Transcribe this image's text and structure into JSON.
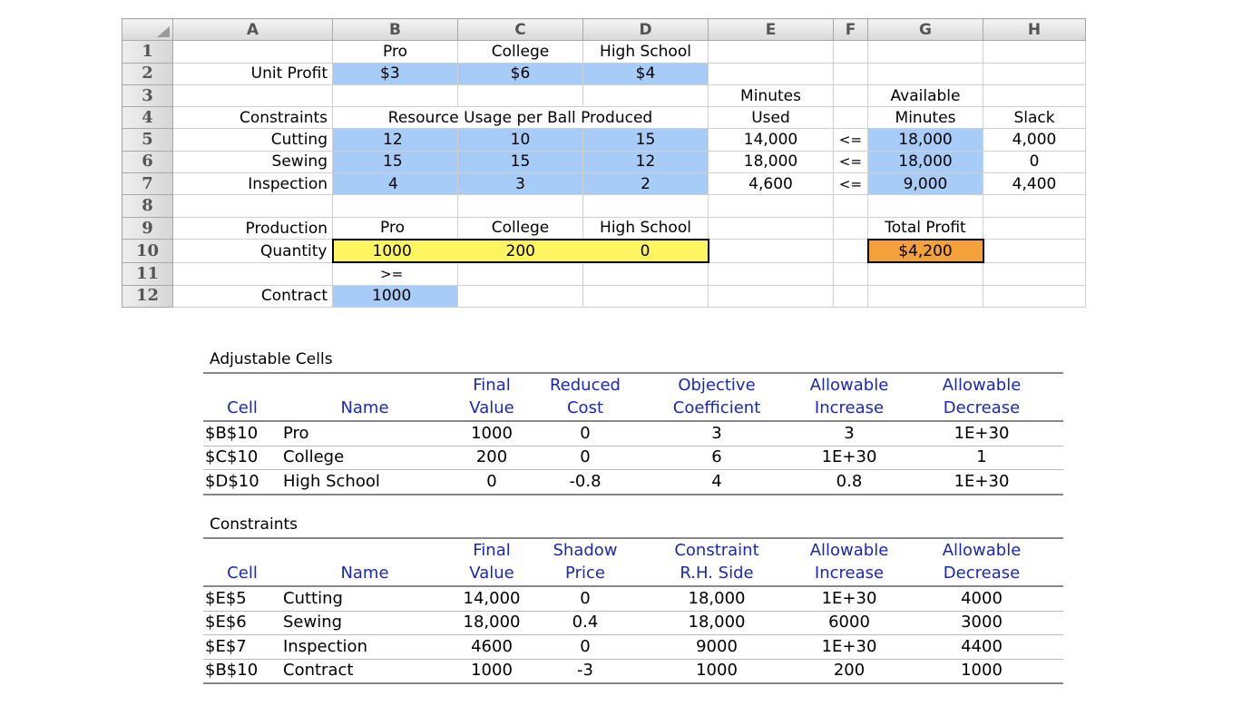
{
  "spreadsheet": {
    "column_headers": [
      "A",
      "B",
      "C",
      "D",
      "E",
      "F",
      "G",
      "H"
    ],
    "row_numbers": [
      "1",
      "2",
      "3",
      "4",
      "5",
      "6",
      "7",
      "8",
      "9",
      "10",
      "11",
      "12"
    ],
    "r1": {
      "B": "Pro",
      "C": "College",
      "D": "High School"
    },
    "r2": {
      "A": "Unit Profit",
      "B": "$3",
      "C": "$6",
      "D": "$4"
    },
    "r3": {
      "E": "Minutes",
      "G": "Available"
    },
    "r4": {
      "A": "Constraints",
      "BD": "Resource Usage per Ball Produced",
      "E": "Used",
      "G": "Minutes",
      "H": "Slack"
    },
    "r5": {
      "A": "Cutting",
      "B": "12",
      "C": "10",
      "D": "15",
      "E": "14,000",
      "F": "<=",
      "G": "18,000",
      "H": "4,000"
    },
    "r6": {
      "A": "Sewing",
      "B": "15",
      "C": "15",
      "D": "12",
      "E": "18,000",
      "F": "<=",
      "G": "18,000",
      "H": "0"
    },
    "r7": {
      "A": "Inspection",
      "B": "4",
      "C": "3",
      "D": "2",
      "E": "4,600",
      "F": "<=",
      "G": "9,000",
      "H": "4,400"
    },
    "r9": {
      "A": "Production",
      "B": "Pro",
      "C": "College",
      "D": "High School",
      "G": "Total Profit"
    },
    "r10": {
      "A": "Quantity",
      "B": "1000",
      "C": "200",
      "D": "0",
      "G": "$4,200"
    },
    "r11": {
      "B": ">="
    },
    "r12": {
      "A": "Contract",
      "B": "1000"
    }
  },
  "adjustable": {
    "title": "Adjustable Cells",
    "header1": [
      "",
      "",
      "Final",
      "Reduced",
      "Objective",
      "Allowable",
      "Allowable"
    ],
    "header2": [
      "Cell",
      "Name",
      "Value",
      "Cost",
      "Coefficient",
      "Increase",
      "Decrease"
    ],
    "rows": [
      [
        "$B$10",
        "Pro",
        "1000",
        "0",
        "3",
        "3",
        "1E+30"
      ],
      [
        "$C$10",
        "College",
        "200",
        "0",
        "6",
        "1E+30",
        "1"
      ],
      [
        "$D$10",
        "High School",
        "0",
        "-0.8",
        "4",
        "0.8",
        "1E+30"
      ]
    ]
  },
  "constraints": {
    "title": "Constraints",
    "header1": [
      "",
      "",
      "Final",
      "Shadow",
      "Constraint",
      "Allowable",
      "Allowable"
    ],
    "header2": [
      "Cell",
      "Name",
      "Value",
      "Price",
      "R.H. Side",
      "Increase",
      "Decrease"
    ],
    "rows": [
      [
        "$E$5",
        "Cutting",
        "14,000",
        "0",
        "18,000",
        "1E+30",
        "4000"
      ],
      [
        "$E$6",
        "Sewing",
        "18,000",
        "0.4",
        "18,000",
        "6000",
        "3000"
      ],
      [
        "$E$7",
        "Inspection",
        "4600",
        "0",
        "9000",
        "1E+30",
        "4400"
      ],
      [
        "$B$10",
        "Contract",
        "1000",
        "-3",
        "1000",
        "200",
        "1000"
      ]
    ]
  },
  "colors": {
    "input_blue": "#a8ccf8",
    "decision_yellow": "#fef561",
    "objective_orange": "#f3a23b",
    "report_header_blue": "#1a28b8"
  }
}
